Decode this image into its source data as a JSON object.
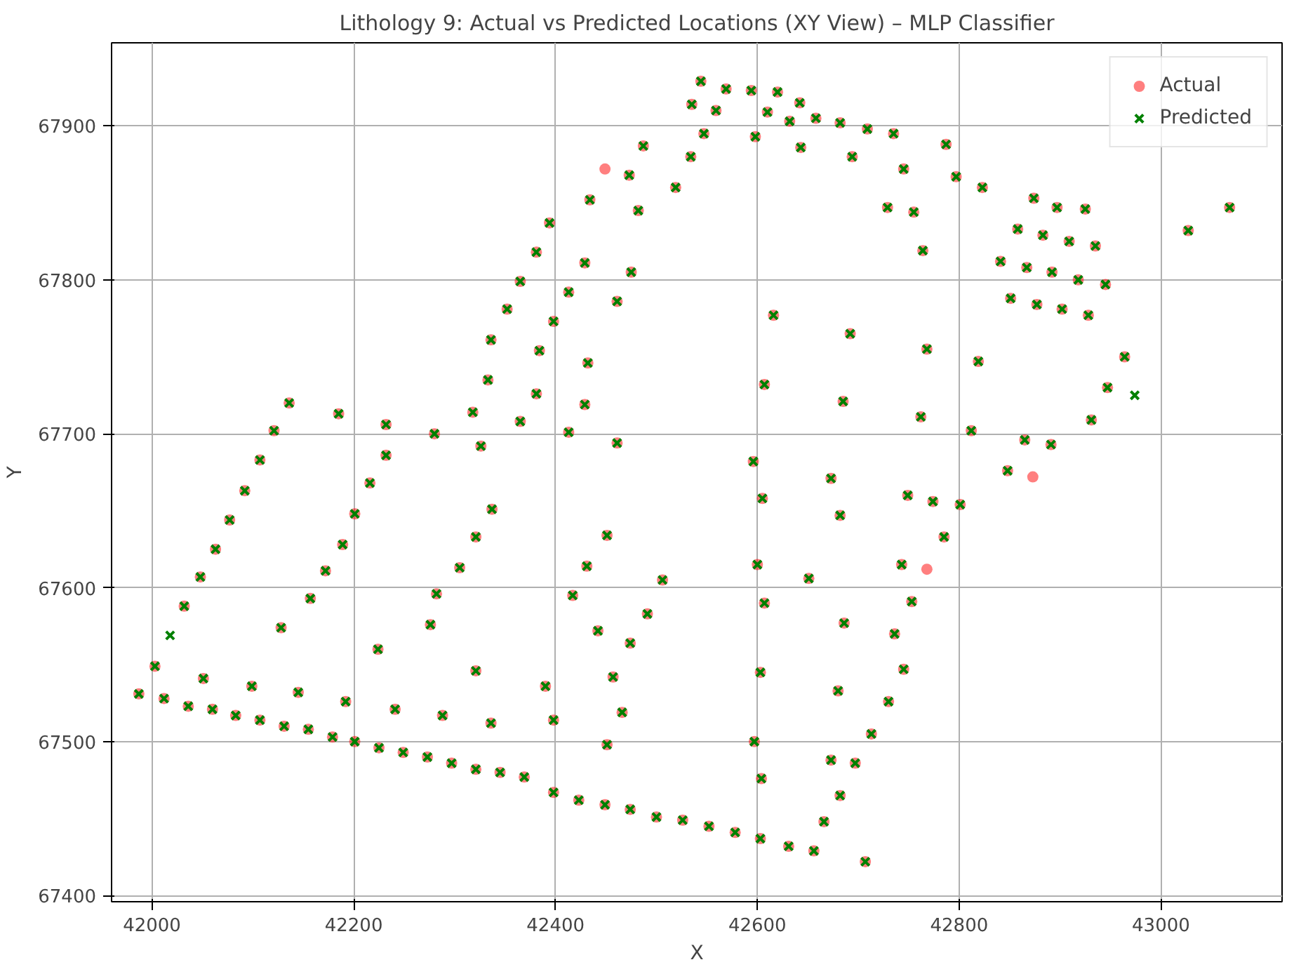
{
  "chart_data": {
    "type": "scatter",
    "title": "Lithology 9: Actual vs Predicted Locations (XY View) – MLP Classifier",
    "xlabel": "X",
    "ylabel": "Y",
    "xlim": [
      41960,
      43120
    ],
    "ylim": [
      67396,
      67954
    ],
    "xticks": [
      42000,
      42200,
      42400,
      42600,
      42800,
      43000
    ],
    "yticks": [
      67400,
      67500,
      67600,
      67700,
      67800,
      67900
    ],
    "grid": true,
    "legend": "top right",
    "series": [
      {
        "name": "Actual",
        "color": "#ff0000",
        "marker": "circle",
        "x": [
          41987,
          42012,
          42036,
          42060,
          42083,
          42107,
          42131,
          42155,
          42179,
          42201,
          42225,
          42249,
          42273,
          42297,
          42321,
          42345,
          42369,
          42398,
          42423,
          42449,
          42474,
          42500,
          42526,
          42552,
          42578,
          42603,
          42631,
          42656,
          42707,
          42003,
          42051,
          42099,
          42145,
          42192,
          42241,
          42288,
          42336,
          42032,
          42128,
          42224,
          42321,
          42048,
          42157,
          42276,
          42063,
          42172,
          42282,
          42442,
          42077,
          42189,
          42305,
          42417,
          42092,
          42201,
          42321,
          42431,
          42107,
          42216,
          42337,
          42451,
          42121,
          42232,
          42136,
          42185,
          42232,
          42280,
          42326,
          42318,
          42365,
          42413,
          42461,
          42333,
          42381,
          42429,
          42336,
          42384,
          42432,
          42352,
          42398,
          42461,
          42365,
          42413,
          42475,
          42381,
          42429,
          42394,
          42434,
          42482,
          42473,
          42519,
          42487,
          42534,
          42535,
          42544,
          42569,
          42594,
          42620,
          42642,
          42559,
          42610,
          42632,
          42658,
          42682,
          42709,
          42735,
          42787,
          42547,
          42598,
          42643,
          42694,
          42745,
          42797,
          42823,
          42874,
          42897,
          42925,
          42858,
          42883,
          42909,
          42935,
          42841,
          42867,
          42892,
          42918,
          42945,
          42755,
          42764,
          42729,
          42851,
          42877,
          42902,
          42928,
          42964,
          42947,
          42931,
          42891,
          42865,
          42812,
          42848,
          42801,
          42785,
          42774,
          42743,
          42753,
          42736,
          42745,
          42730,
          42713,
          42697,
          42682,
          42666,
          42616,
          42692,
          42768,
          42819,
          42607,
          42685,
          42762,
          42596,
          42673,
          42749,
          42605,
          42682,
          42600,
          42651,
          42607,
          42686,
          42603,
          42680,
          42597,
          42673,
          42604,
          42451,
          42466,
          42457,
          42474,
          42491,
          42506,
          42390,
          42398,
          43027,
          43068,
          42449,
          42873,
          42768
        ],
        "values": [
          67531,
          67528,
          67523,
          67521,
          67517,
          67514,
          67510,
          67508,
          67503,
          67500,
          67496,
          67493,
          67490,
          67486,
          67482,
          67480,
          67477,
          67467,
          67462,
          67459,
          67456,
          67451,
          67449,
          67445,
          67441,
          67437,
          67432,
          67429,
          67422,
          67549,
          67541,
          67536,
          67532,
          67526,
          67521,
          67517,
          67512,
          67588,
          67574,
          67560,
          67546,
          67607,
          67593,
          67576,
          67625,
          67611,
          67596,
          67572,
          67644,
          67628,
          67613,
          67595,
          67663,
          67648,
          67633,
          67614,
          67683,
          67668,
          67651,
          67634,
          67702,
          67686,
          67720,
          67713,
          67706,
          67700,
          67692,
          67714,
          67708,
          67701,
          67694,
          67735,
          67726,
          67719,
          67761,
          67754,
          67746,
          67781,
          67773,
          67786,
          67799,
          67792,
          67805,
          67818,
          67811,
          67837,
          67852,
          67845,
          67868,
          67860,
          67887,
          67880,
          67914,
          67929,
          67924,
          67923,
          67922,
          67915,
          67910,
          67909,
          67903,
          67905,
          67902,
          67898,
          67895,
          67888,
          67895,
          67893,
          67886,
          67880,
          67872,
          67867,
          67860,
          67853,
          67847,
          67846,
          67833,
          67829,
          67825,
          67822,
          67812,
          67808,
          67805,
          67800,
          67797,
          67844,
          67819,
          67847,
          67788,
          67784,
          67781,
          67777,
          67750,
          67730,
          67709,
          67693,
          67696,
          67702,
          67676,
          67654,
          67633,
          67656,
          67615,
          67591,
          67570,
          67547,
          67526,
          67505,
          67486,
          67465,
          67448,
          67777,
          67765,
          67755,
          67747,
          67732,
          67721,
          67711,
          67682,
          67671,
          67660,
          67658,
          67647,
          67615,
          67606,
          67590,
          67577,
          67545,
          67533,
          67500,
          67488,
          67476,
          67498,
          67519,
          67542,
          67564,
          67583,
          67605,
          67536,
          67514,
          67832,
          67847,
          67872,
          67672,
          67612
        ]
      },
      {
        "name": "Predicted",
        "color": "#008000",
        "marker": "cross",
        "x": [
          41987,
          42012,
          42036,
          42060,
          42083,
          42107,
          42131,
          42155,
          42179,
          42201,
          42225,
          42249,
          42273,
          42297,
          42321,
          42345,
          42369,
          42398,
          42423,
          42449,
          42474,
          42500,
          42526,
          42552,
          42578,
          42603,
          42631,
          42656,
          42707,
          42003,
          42051,
          42099,
          42145,
          42192,
          42241,
          42288,
          42336,
          42032,
          42128,
          42224,
          42321,
          42048,
          42157,
          42276,
          42063,
          42172,
          42282,
          42442,
          42077,
          42189,
          42305,
          42417,
          42092,
          42201,
          42321,
          42431,
          42107,
          42216,
          42337,
          42451,
          42121,
          42232,
          42136,
          42185,
          42232,
          42280,
          42326,
          42318,
          42365,
          42413,
          42461,
          42333,
          42381,
          42429,
          42336,
          42384,
          42432,
          42352,
          42398,
          42461,
          42365,
          42413,
          42475,
          42381,
          42429,
          42394,
          42434,
          42482,
          42473,
          42519,
          42487,
          42534,
          42535,
          42544,
          42569,
          42594,
          42620,
          42642,
          42559,
          42610,
          42632,
          42658,
          42682,
          42709,
          42735,
          42787,
          42547,
          42598,
          42643,
          42694,
          42745,
          42797,
          42823,
          42874,
          42897,
          42925,
          42858,
          42883,
          42909,
          42935,
          42841,
          42867,
          42892,
          42918,
          42945,
          42755,
          42764,
          42729,
          42851,
          42877,
          42902,
          42928,
          42964,
          42947,
          42931,
          42891,
          42865,
          42812,
          42848,
          42801,
          42785,
          42774,
          42743,
          42753,
          42736,
          42745,
          42730,
          42713,
          42697,
          42682,
          42666,
          42616,
          42692,
          42768,
          42819,
          42607,
          42685,
          42762,
          42596,
          42673,
          42749,
          42605,
          42682,
          42600,
          42651,
          42607,
          42686,
          42603,
          42680,
          42597,
          42673,
          42604,
          42451,
          42466,
          42457,
          42474,
          42491,
          42506,
          42390,
          42398,
          43027,
          43068,
          42018,
          42974
        ],
        "values": [
          67531,
          67528,
          67523,
          67521,
          67517,
          67514,
          67510,
          67508,
          67503,
          67500,
          67496,
          67493,
          67490,
          67486,
          67482,
          67480,
          67477,
          67467,
          67462,
          67459,
          67456,
          67451,
          67449,
          67445,
          67441,
          67437,
          67432,
          67429,
          67422,
          67549,
          67541,
          67536,
          67532,
          67526,
          67521,
          67517,
          67512,
          67588,
          67574,
          67560,
          67546,
          67607,
          67593,
          67576,
          67625,
          67611,
          67596,
          67572,
          67644,
          67628,
          67613,
          67595,
          67663,
          67648,
          67633,
          67614,
          67683,
          67668,
          67651,
          67634,
          67702,
          67686,
          67720,
          67713,
          67706,
          67700,
          67692,
          67714,
          67708,
          67701,
          67694,
          67735,
          67726,
          67719,
          67761,
          67754,
          67746,
          67781,
          67773,
          67786,
          67799,
          67792,
          67805,
          67818,
          67811,
          67837,
          67852,
          67845,
          67868,
          67860,
          67887,
          67880,
          67914,
          67929,
          67924,
          67923,
          67922,
          67915,
          67910,
          67909,
          67903,
          67905,
          67902,
          67898,
          67895,
          67888,
          67895,
          67893,
          67886,
          67880,
          67872,
          67867,
          67860,
          67853,
          67847,
          67846,
          67833,
          67829,
          67825,
          67822,
          67812,
          67808,
          67805,
          67800,
          67797,
          67844,
          67819,
          67847,
          67788,
          67784,
          67781,
          67777,
          67750,
          67730,
          67709,
          67693,
          67696,
          67702,
          67676,
          67654,
          67633,
          67656,
          67615,
          67591,
          67570,
          67547,
          67526,
          67505,
          67486,
          67465,
          67448,
          67777,
          67765,
          67755,
          67747,
          67732,
          67721,
          67711,
          67682,
          67671,
          67660,
          67658,
          67647,
          67615,
          67606,
          67590,
          67577,
          67545,
          67533,
          67500,
          67488,
          67476,
          67498,
          67519,
          67542,
          67564,
          67583,
          67605,
          67536,
          67514,
          67832,
          67847,
          67569,
          67725
        ]
      }
    ]
  }
}
